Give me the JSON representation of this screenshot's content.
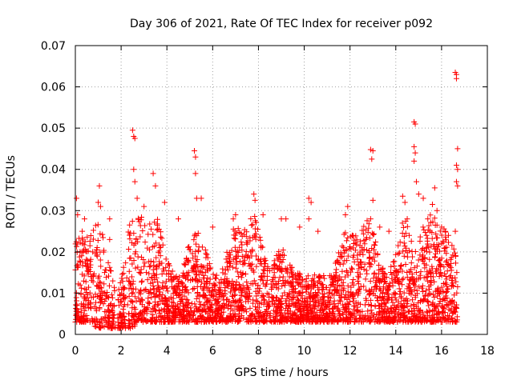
{
  "chart_data": {
    "type": "scatter",
    "title": "Day 306 of 2021, Rate Of TEC Index for receiver p092",
    "xlabel": "GPS time / hours",
    "ylabel": "ROTI / TECUs",
    "xlim": [
      0,
      18
    ],
    "ylim": [
      0,
      0.07
    ],
    "xticks": [
      0,
      2,
      4,
      6,
      8,
      10,
      12,
      14,
      16,
      18
    ],
    "yticks": [
      0,
      0.01,
      0.02,
      0.03,
      0.04,
      0.05,
      0.06,
      0.07
    ],
    "xtick_labels": [
      "0",
      "2",
      "4",
      "6",
      "8",
      "10",
      "12",
      "14",
      "16",
      "18"
    ],
    "ytick_labels": [
      "0",
      "0.01",
      "0.02",
      "0.03",
      "0.04",
      "0.05",
      "0.06",
      "0.07"
    ],
    "grid": true,
    "marker": "+",
    "color": "#ff0000",
    "data_x_range": [
      0,
      16.7
    ],
    "series": [
      {
        "name": "ROTI",
        "points": [
          [
            0.05,
            0.033
          ],
          [
            0.1,
            0.029
          ],
          [
            0.3,
            0.025
          ],
          [
            0.4,
            0.028
          ],
          [
            1.0,
            0.032
          ],
          [
            1.05,
            0.036
          ],
          [
            1.1,
            0.031
          ],
          [
            1.5,
            0.028
          ],
          [
            1.5,
            0.023
          ],
          [
            2.5,
            0.0495
          ],
          [
            2.55,
            0.048
          ],
          [
            2.6,
            0.0475
          ],
          [
            2.55,
            0.04
          ],
          [
            2.6,
            0.037
          ],
          [
            2.7,
            0.033
          ],
          [
            3.0,
            0.031
          ],
          [
            3.4,
            0.039
          ],
          [
            3.5,
            0.036
          ],
          [
            3.9,
            0.032
          ],
          [
            4.5,
            0.028
          ],
          [
            5.2,
            0.0445
          ],
          [
            5.25,
            0.043
          ],
          [
            5.25,
            0.039
          ],
          [
            5.3,
            0.033
          ],
          [
            5.5,
            0.033
          ],
          [
            6.0,
            0.026
          ],
          [
            6.9,
            0.028
          ],
          [
            7.0,
            0.029
          ],
          [
            7.8,
            0.034
          ],
          [
            7.85,
            0.0325
          ],
          [
            8.2,
            0.029
          ],
          [
            9.0,
            0.028
          ],
          [
            9.2,
            0.028
          ],
          [
            9.8,
            0.026
          ],
          [
            10.2,
            0.033
          ],
          [
            10.3,
            0.032
          ],
          [
            10.2,
            0.028
          ],
          [
            10.6,
            0.025
          ],
          [
            11.8,
            0.029
          ],
          [
            11.9,
            0.031
          ],
          [
            12.1,
            0.024
          ],
          [
            12.9,
            0.0448
          ],
          [
            13.0,
            0.0445
          ],
          [
            12.95,
            0.0425
          ],
          [
            13.0,
            0.0325
          ],
          [
            12.9,
            0.028
          ],
          [
            13.3,
            0.026
          ],
          [
            13.7,
            0.025
          ],
          [
            14.3,
            0.0335
          ],
          [
            14.4,
            0.032
          ],
          [
            14.5,
            0.028
          ],
          [
            14.8,
            0.0515
          ],
          [
            14.85,
            0.051
          ],
          [
            14.8,
            0.0455
          ],
          [
            14.85,
            0.044
          ],
          [
            14.8,
            0.042
          ],
          [
            14.9,
            0.037
          ],
          [
            15.0,
            0.034
          ],
          [
            15.2,
            0.033
          ],
          [
            15.4,
            0.028
          ],
          [
            15.6,
            0.0315
          ],
          [
            15.7,
            0.0355
          ],
          [
            15.8,
            0.03
          ],
          [
            16.0,
            0.026
          ],
          [
            16.3,
            0.024
          ],
          [
            16.6,
            0.0635
          ],
          [
            16.65,
            0.063
          ],
          [
            16.65,
            0.062
          ],
          [
            16.7,
            0.045
          ],
          [
            16.65,
            0.041
          ],
          [
            16.7,
            0.04
          ],
          [
            16.65,
            0.037
          ],
          [
            16.7,
            0.036
          ],
          [
            16.6,
            0.025
          ]
        ]
      }
    ]
  }
}
